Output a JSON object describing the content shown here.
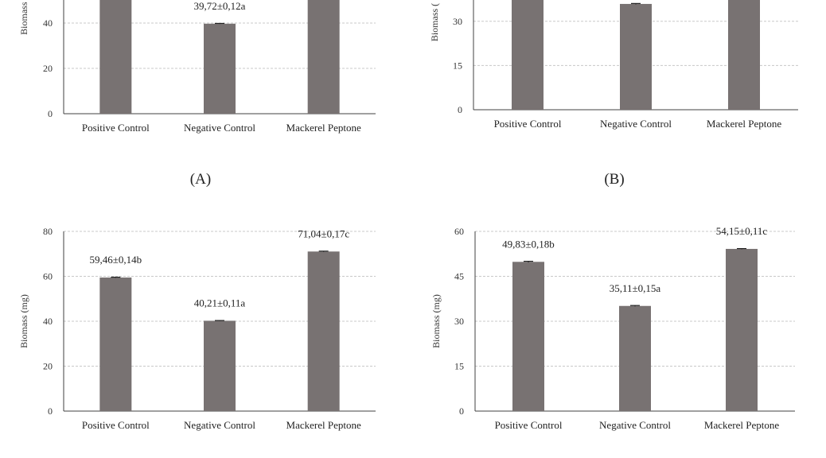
{
  "panel_labels": [
    "(A)",
    "(B)"
  ],
  "chart_data": [
    {
      "type": "bar",
      "categories": [
        "Positive Control",
        "Negative Control",
        "Mackerel Peptone"
      ],
      "values": [
        null,
        39.72,
        null
      ],
      "errors": [
        null,
        0.12,
        null
      ],
      "data_labels": [
        "",
        "39,72±0,12a",
        ""
      ],
      "ylabel": "Biomass (mg)",
      "yticks": [
        0,
        20,
        40
      ],
      "ylim": [
        0,
        48
      ],
      "grid": true,
      "color": "#787272"
    },
    {
      "type": "bar",
      "categories": [
        "Positive Control",
        "Negative Control",
        "Mackerel Peptone"
      ],
      "values": [
        null,
        35.9,
        null
      ],
      "errors": [
        null,
        0.15,
        null
      ],
      "data_labels": [
        "",
        "",
        ""
      ],
      "ylabel": "Biomass (",
      "yticks": [
        0,
        15,
        30
      ],
      "ylim": [
        0,
        37
      ],
      "grid": true,
      "color": "#787272"
    },
    {
      "type": "bar",
      "categories": [
        "Positive Control",
        "Negative Control",
        "Mackerel Peptone"
      ],
      "values": [
        59.46,
        40.21,
        71.04
      ],
      "errors": [
        0.14,
        0.11,
        0.17
      ],
      "data_labels": [
        "59,46±0,14b",
        "40,21±0,11a",
        "71,04±0,17c"
      ],
      "ylabel": "Biomass (mg)",
      "yticks": [
        0,
        20,
        40,
        60,
        80
      ],
      "ylim": [
        0,
        80
      ],
      "grid": true,
      "color": "#787272"
    },
    {
      "type": "bar",
      "categories": [
        "Positive Control",
        "Negative Control",
        "Mackerel Peptone"
      ],
      "values": [
        49.83,
        35.11,
        54.15
      ],
      "errors": [
        0.18,
        0.15,
        0.11
      ],
      "data_labels": [
        "49,83±0,18b",
        "35,11±0,15a",
        "54,15±0,11c"
      ],
      "ylabel": "Biomass (mg)",
      "yticks": [
        0,
        15,
        30,
        45,
        60
      ],
      "ylim": [
        0,
        60
      ],
      "grid": true,
      "color": "#787272"
    }
  ]
}
